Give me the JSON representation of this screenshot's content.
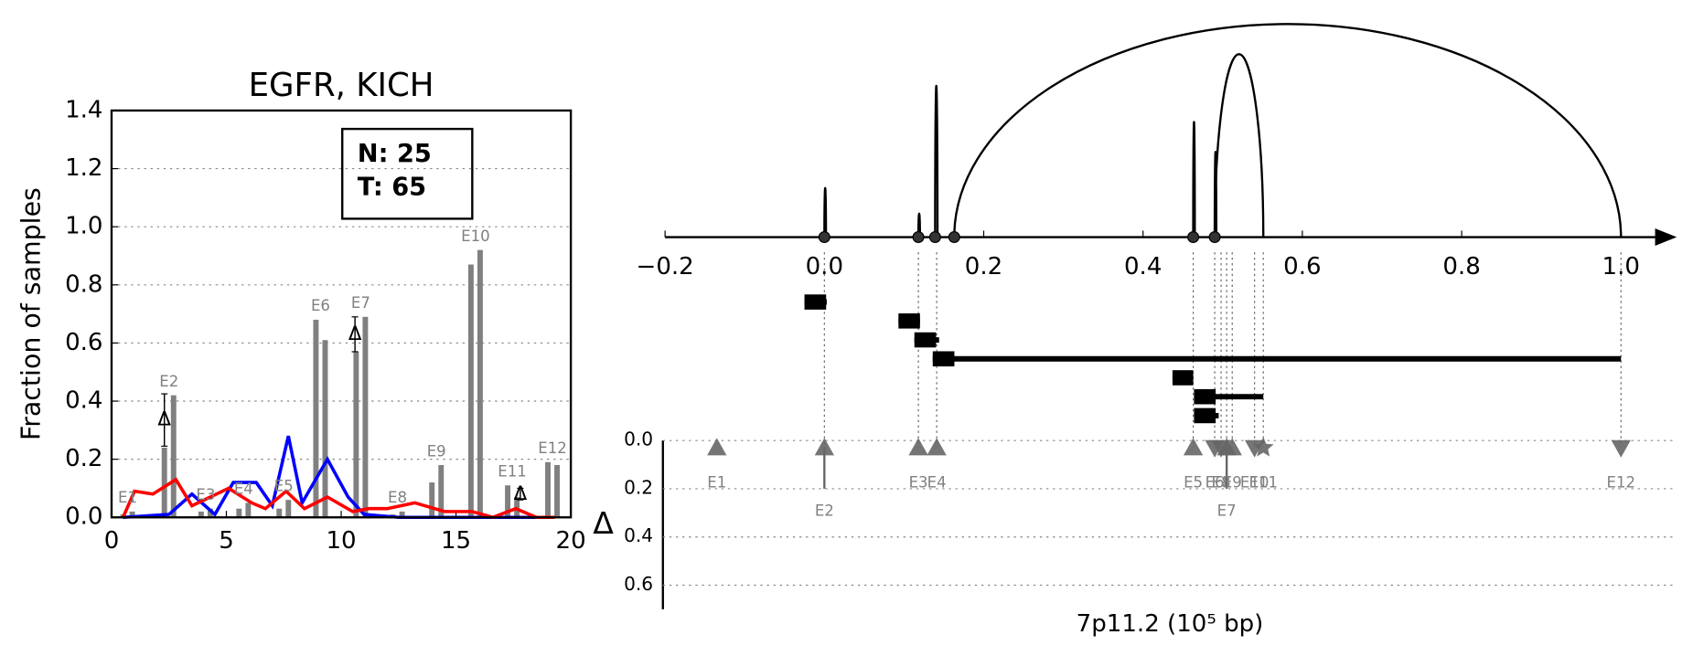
{
  "chart_data": [
    {
      "type": "bar",
      "title": "EGFR, KICH",
      "ylabel": "Fraction of samples",
      "xlim": [
        0,
        20
      ],
      "ylim": [
        0,
        1.4
      ],
      "xticks": [
        0,
        5,
        10,
        15,
        20
      ],
      "yticks": [
        {
          "value": 0,
          "label": "0.0"
        },
        {
          "value": 0.2,
          "label": "0.2"
        },
        {
          "value": 0.4,
          "label": "0.4"
        },
        {
          "value": 0.6,
          "label": "0.6"
        },
        {
          "value": 0.8,
          "label": "0.8"
        },
        {
          "value": 1.0,
          "label": "1.0"
        },
        {
          "value": 1.2,
          "label": "1.2"
        },
        {
          "value": 1.4,
          "label": "1.4"
        }
      ],
      "grid": true,
      "categories": [
        "E1",
        "E2",
        "E3",
        "E4",
        "E5",
        "E6",
        "E7",
        "E8",
        "E9",
        "E10",
        "E11",
        "E12"
      ],
      "series": [
        {
          "type": "bar",
          "color": "#808080",
          "x": [
            0.5,
            2.3,
            3.9,
            5.55,
            7.3,
            8.9,
            10.65,
            12.25,
            13.95,
            15.65,
            17.25,
            19.0
          ],
          "values": [
            0.01,
            0.24,
            0.02,
            0.03,
            0.03,
            0.68,
            0.57,
            0.01,
            0.12,
            0.87,
            0.11,
            0.19
          ]
        },
        {
          "type": "bar",
          "color": "#808080",
          "x": [
            0.9,
            2.7,
            4.3,
            5.95,
            7.7,
            9.3,
            11.05,
            12.65,
            14.35,
            16.05,
            17.65,
            19.4
          ],
          "values": [
            0.02,
            0.42,
            0.03,
            0.05,
            0.06,
            0.61,
            0.69,
            0.02,
            0.18,
            0.92,
            0.07,
            0.18
          ]
        },
        {
          "type": "line",
          "color": "#0000ff",
          "x": [
            0.5,
            2.5,
            3.5,
            4.5,
            5.3,
            6.3,
            7,
            7.7,
            8.3,
            9.4,
            10.3,
            11,
            12.5,
            19
          ],
          "values": [
            0,
            0.01,
            0.08,
            0.01,
            0.12,
            0.12,
            0.04,
            0.28,
            0.05,
            0.2,
            0.07,
            0.01,
            0,
            0
          ]
        },
        {
          "type": "line",
          "color": "#ff0000",
          "x": [
            0.5,
            1,
            1.8,
            2.8,
            3.5,
            4.3,
            5.1,
            6.1,
            6.7,
            7.6,
            8.4,
            9.4,
            10.5,
            11.2,
            12,
            13.2,
            14.5,
            15.7,
            16.6,
            17.6,
            18.5,
            19.3
          ],
          "values": [
            0,
            0.09,
            0.08,
            0.13,
            0.04,
            0.07,
            0.1,
            0.05,
            0.03,
            0.09,
            0.03,
            0.07,
            0.02,
            0.03,
            0.03,
            0.05,
            0.02,
            0.02,
            0,
            0.03,
            0,
            0
          ]
        }
      ],
      "delta": {
        "label": "Δ",
        "x": [
          2.3,
          10.6,
          17.8
        ],
        "values": [
          0.335,
          0.63,
          0.08
        ],
        "errors": [
          0.09,
          0.06,
          0.02
        ]
      },
      "annotations": [
        "N: 25",
        "T: 65"
      ]
    },
    {
      "type": "arc",
      "xlim": [
        -0.2,
        1.07
      ],
      "xticks": [
        {
          "value": -0.2,
          "label": "−0.2"
        },
        {
          "value": 0,
          "label": "0.0"
        },
        {
          "value": 0.2,
          "label": "0.2"
        },
        {
          "value": 0.4,
          "label": "0.4"
        },
        {
          "value": 0.6,
          "label": "0.6"
        },
        {
          "value": 0.8,
          "label": "0.8"
        },
        {
          "value": 1.0,
          "label": "1.0"
        }
      ],
      "arcs": [
        {
          "start": 0,
          "end": 0.002,
          "height": 0.23
        },
        {
          "start": 0.118,
          "end": 0.12,
          "height": 0.11
        },
        {
          "start": 0.139,
          "end": 0.142,
          "height": 0.71
        },
        {
          "start": 0.163,
          "end": 1.0,
          "height": 1.0
        },
        {
          "start": 0.463,
          "end": 0.465,
          "height": 0.54
        },
        {
          "start": 0.49,
          "end": 0.492,
          "height": 0.4
        },
        {
          "start": 0.49,
          "end": 0.551,
          "height": 0.86
        }
      ],
      "points": [
        0,
        0.118,
        0.139,
        0.163,
        0.463,
        0.49
      ],
      "segments": [
        {
          "start": -0.025,
          "end": 0.003
        },
        {
          "start": 0.093,
          "end": 0.12
        },
        {
          "start": 0.113,
          "end": 0.144
        },
        {
          "start": 0.136,
          "end": 1.0
        },
        {
          "start": 0.437,
          "end": 0.463
        },
        {
          "start": 0.464,
          "end": 0.551
        },
        {
          "start": 0.464,
          "end": 0.495
        }
      ]
    },
    {
      "type": "scatter",
      "ylabel": "Δ",
      "xlabel": "7p11.2 (10⁵ bp)",
      "xlim": [
        -0.2,
        1.07
      ],
      "ylim": [
        0,
        0.7
      ],
      "yticks": [
        {
          "value": 0,
          "label": "0.0"
        },
        {
          "value": 0.2,
          "label": "0.2"
        },
        {
          "value": 0.4,
          "label": "0.4"
        },
        {
          "value": 0.6,
          "label": "0.6"
        }
      ],
      "grid": true,
      "color": "#666666",
      "categories": [
        "E1",
        "E2",
        "E3",
        "E4",
        "E5",
        "E6",
        "E7",
        "E8",
        "E9",
        "E10",
        "E11",
        "E12"
      ],
      "x": [
        -0.135,
        0,
        0.118,
        0.141,
        0.463,
        0.49,
        0.505,
        0.498,
        0.512,
        0.54,
        0.551,
        1.0
      ],
      "values": [
        0.03,
        0.03,
        0.03,
        0.03,
        0.03,
        0.03,
        0.03,
        0.03,
        0.03,
        0.03,
        0.03,
        0.03
      ],
      "errors": [
        null,
        0.17,
        null,
        null,
        null,
        null,
        0.17,
        null,
        null,
        null,
        null,
        null
      ],
      "markers": [
        "up",
        "up",
        "up",
        "up",
        "up",
        "down",
        "up",
        "down",
        "up",
        "down",
        "star",
        "down"
      ]
    }
  ]
}
